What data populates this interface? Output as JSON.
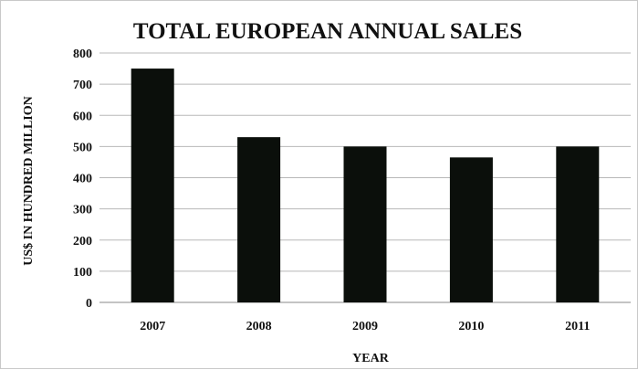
{
  "chart_data": {
    "type": "bar",
    "title": "TOTAL EUROPEAN ANNUAL SALES",
    "xlabel": "YEAR",
    "ylabel": "US$ IN HUNDRED MILLION",
    "categories": [
      "2007",
      "2008",
      "2009",
      "2010",
      "2011"
    ],
    "values": [
      750,
      530,
      500,
      465,
      500
    ],
    "ylim": [
      0,
      800
    ],
    "yticks": [
      "0",
      "100",
      "200",
      "300",
      "400",
      "500",
      "600",
      "700",
      "800"
    ],
    "grid": true,
    "legend": "none",
    "bar_color": "#0b0f0b",
    "grid_color": "#b8b8b8"
  }
}
